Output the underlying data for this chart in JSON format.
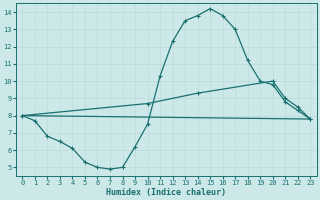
{
  "xlabel": "Humidex (Indice chaleur)",
  "bg_color": "#cce8e8",
  "grid_color": "#d4e8e8",
  "line_color": "#1a7070",
  "xlim": [
    -0.5,
    23.5
  ],
  "ylim": [
    4.5,
    14.5
  ],
  "xticks": [
    0,
    1,
    2,
    3,
    4,
    5,
    6,
    7,
    8,
    9,
    10,
    11,
    12,
    13,
    14,
    15,
    16,
    17,
    18,
    19,
    20,
    21,
    22,
    23
  ],
  "yticks": [
    5,
    6,
    7,
    8,
    9,
    10,
    11,
    12,
    13,
    14
  ],
  "line1_x": [
    0,
    1,
    2,
    3,
    4,
    5,
    6,
    7,
    8,
    9,
    10,
    11,
    12,
    13,
    14,
    15,
    16,
    17,
    18,
    19,
    20,
    21,
    22,
    23
  ],
  "line1_y": [
    8.0,
    7.7,
    6.8,
    6.5,
    6.1,
    5.3,
    5.0,
    4.9,
    5.0,
    6.2,
    7.5,
    10.3,
    12.3,
    13.5,
    13.8,
    14.2,
    13.8,
    13.0,
    11.2,
    10.0,
    9.8,
    8.8,
    8.3,
    7.8
  ],
  "line2_x": [
    0,
    23
  ],
  "line2_y": [
    8.0,
    7.8
  ],
  "line3_x": [
    0,
    10,
    14,
    20,
    21,
    22,
    23
  ],
  "line3_y": [
    8.0,
    8.7,
    9.3,
    10.0,
    9.0,
    8.5,
    7.8
  ]
}
